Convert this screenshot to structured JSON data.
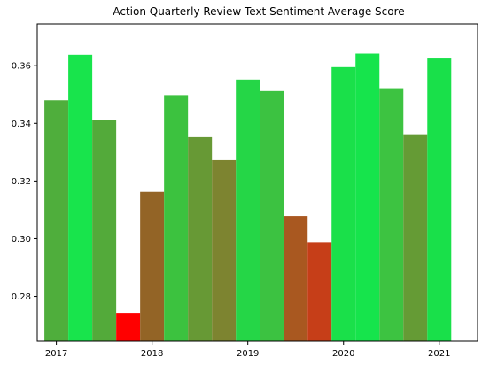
{
  "chart_data": {
    "type": "bar",
    "title": "Action Quarterly Review Text Sentiment Average Score",
    "xlabel": "",
    "ylabel": "",
    "ylim": [
      0.2645,
      0.3745
    ],
    "xlim": [
      2016.8,
      2021.4
    ],
    "x_ticks": [
      2017,
      2018,
      2019,
      2020,
      2021
    ],
    "x_tick_labels": [
      "2017",
      "2018",
      "2019",
      "2020",
      "2021"
    ],
    "y_ticks": [
      0.28,
      0.3,
      0.32,
      0.34,
      0.36
    ],
    "y_tick_labels": [
      "0.28",
      "0.30",
      "0.32",
      "0.34",
      "0.36"
    ],
    "grid": false,
    "bar_width": 0.25,
    "bars": [
      {
        "x": 2017.0,
        "value": 0.348,
        "color": "#4fae3c"
      },
      {
        "x": 2017.25,
        "value": 0.3638,
        "color": "#18e44c"
      },
      {
        "x": 2017.5,
        "value": 0.3413,
        "color": "#53aa3a"
      },
      {
        "x": 2017.75,
        "value": 0.2743,
        "color": "#ff0000"
      },
      {
        "x": 2018.0,
        "value": 0.3162,
        "color": "#936426"
      },
      {
        "x": 2018.25,
        "value": 0.3498,
        "color": "#3cc23f"
      },
      {
        "x": 2018.5,
        "value": 0.3352,
        "color": "#679935"
      },
      {
        "x": 2018.75,
        "value": 0.3272,
        "color": "#7d8430"
      },
      {
        "x": 2019.0,
        "value": 0.3552,
        "color": "#25d647"
      },
      {
        "x": 2019.25,
        "value": 0.3512,
        "color": "#3cc241"
      },
      {
        "x": 2019.5,
        "value": 0.3078,
        "color": "#a95820"
      },
      {
        "x": 2019.75,
        "value": 0.2988,
        "color": "#c63e18"
      },
      {
        "x": 2020.0,
        "value": 0.3595,
        "color": "#1ae04a"
      },
      {
        "x": 2020.25,
        "value": 0.3642,
        "color": "#16e44c"
      },
      {
        "x": 2020.5,
        "value": 0.3522,
        "color": "#3dc341"
      },
      {
        "x": 2020.75,
        "value": 0.3362,
        "color": "#659b35"
      },
      {
        "x": 2021.0,
        "value": 0.3625,
        "color": "#19e04a"
      }
    ]
  }
}
